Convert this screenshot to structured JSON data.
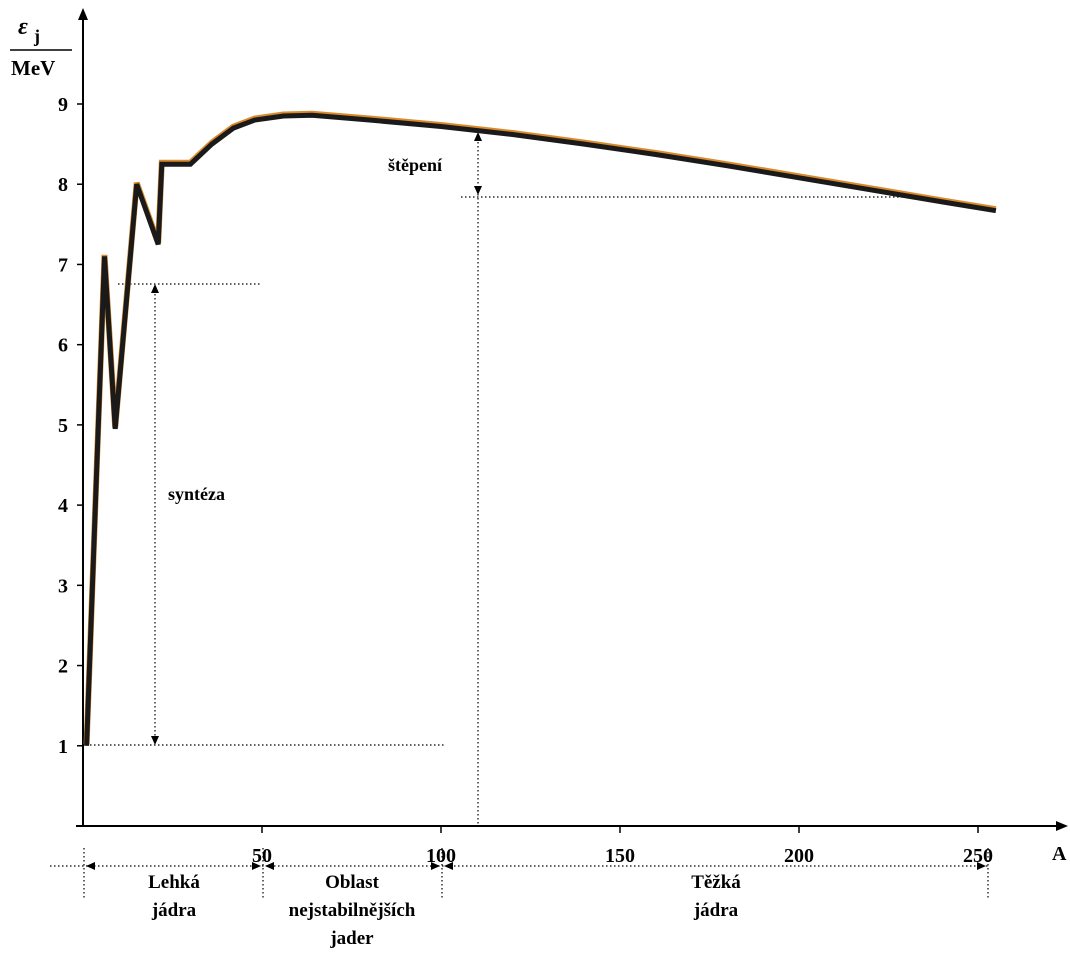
{
  "chart_data": {
    "type": "line",
    "ylabel_symbol": "ε",
    "ylabel_sub": "j",
    "ylabel_unit": "MeV",
    "xlabel": "A",
    "xlim": [
      0,
      260
    ],
    "ylim": [
      0,
      9.7
    ],
    "x_ticks": [
      50,
      100,
      150,
      200,
      250
    ],
    "y_ticks": [
      1,
      2,
      3,
      4,
      5,
      6,
      7,
      8,
      9
    ],
    "series": [
      {
        "color": "#1a1a1a",
        "x": [
          1,
          6,
          9,
          15,
          21,
          22,
          30,
          36,
          42,
          48,
          56,
          64,
          80,
          100,
          120,
          140,
          160,
          180,
          200,
          220,
          240,
          255
        ],
        "y": [
          1.0,
          7.1,
          4.95,
          8.0,
          7.25,
          8.25,
          8.25,
          8.5,
          8.7,
          8.8,
          8.85,
          8.86,
          8.8,
          8.72,
          8.62,
          8.5,
          8.37,
          8.23,
          8.08,
          7.93,
          7.78,
          7.67
        ]
      }
    ],
    "annotations": {
      "synteza": "syntéza",
      "stepeni": "štěpení"
    },
    "regions": [
      {
        "line1": "Lehká",
        "line2": "jádra",
        "line3": ""
      },
      {
        "line1": "Oblast",
        "line2": "nejstabilnějších",
        "line3": "jader"
      },
      {
        "line1": "Těžká",
        "line2": "jádra",
        "line3": ""
      }
    ],
    "grid": false
  }
}
